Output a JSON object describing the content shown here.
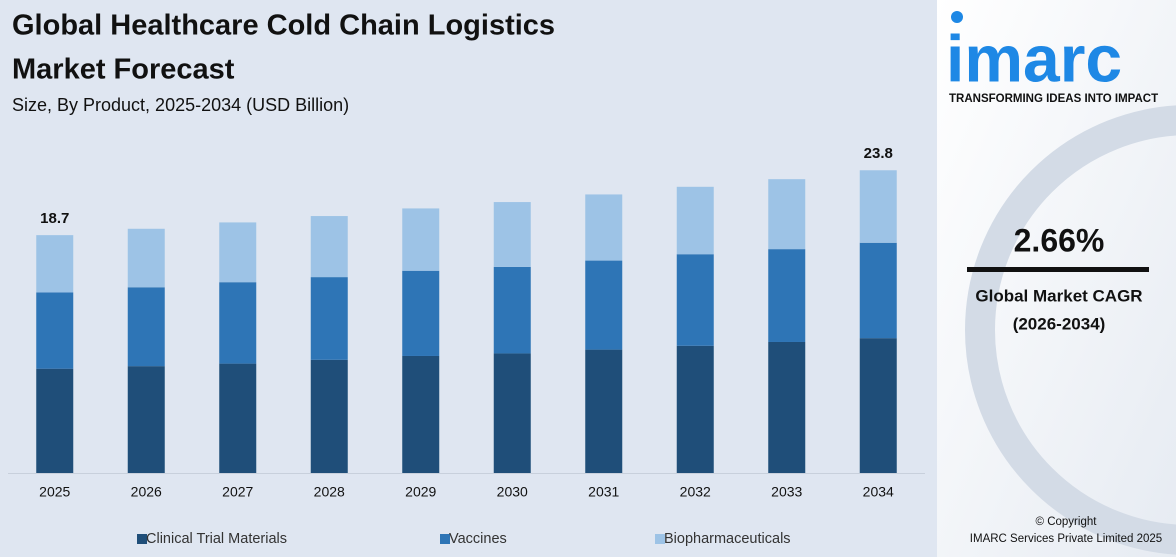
{
  "chart_data": {
    "type": "stacked-bar",
    "title": "Global Healthcare Cold Chain Logistics",
    "title_line2": "Market Forecast",
    "subtitle": "Size, By Product, 2025-2034 (USD Billion)",
    "categories": [
      "2025",
      "2026",
      "2027",
      "2028",
      "2029",
      "2030",
      "2031",
      "2032",
      "2033",
      "2034"
    ],
    "series": [
      {
        "name": "Clinical Trial Materials",
        "color": "#1f4e79",
        "values": [
          8.2,
          8.4,
          8.6,
          8.9,
          9.2,
          9.4,
          9.7,
          10.0,
          10.3,
          10.6
        ]
      },
      {
        "name": "Vaccines",
        "color": "#2e75b6",
        "values": [
          6.0,
          6.2,
          6.4,
          6.5,
          6.7,
          6.8,
          7.0,
          7.2,
          7.3,
          7.5
        ]
      },
      {
        "name": "Biopharmaceuticals",
        "color": "#9dc3e6",
        "values": [
          4.5,
          4.6,
          4.7,
          4.8,
          4.9,
          5.1,
          5.2,
          5.3,
          5.5,
          5.7
        ]
      }
    ],
    "total_labels": [
      "18.7",
      null,
      null,
      null,
      null,
      null,
      null,
      null,
      null,
      "23.8"
    ],
    "ylim": [
      0,
      25
    ]
  },
  "branding": {
    "logo": "imarc",
    "tagline": "TRANSFORMING IDEAS INTO IMPACT",
    "cagr": "2.66%",
    "cagr_label": "Global Market CAGR",
    "cagr_period": "(2026-2034)",
    "copyright": "© Copyright",
    "company": "IMARC Services Private Limited 2025"
  }
}
